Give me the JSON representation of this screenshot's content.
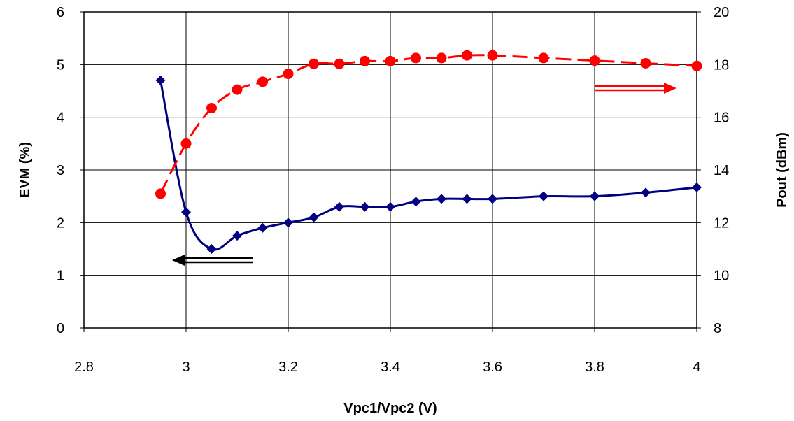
{
  "chart_data": {
    "type": "line",
    "title": "",
    "xlabel": "Vpc1/Vpc2 (V)",
    "ylabel": "EVM (%)",
    "y2label": "Pout (dBm)",
    "xlim": [
      2.8,
      4.0
    ],
    "ylim": [
      0,
      6
    ],
    "y2lim": [
      8,
      20
    ],
    "x_ticks": [
      "2.8",
      "3",
      "3.2",
      "3.4",
      "3.6",
      "3.8",
      "4"
    ],
    "y_ticks": [
      "0",
      "1",
      "2",
      "3",
      "4",
      "5",
      "6"
    ],
    "y2_ticks": [
      "8",
      "10",
      "12",
      "14",
      "16",
      "18",
      "20"
    ],
    "grid": true,
    "series": [
      {
        "axis": "left",
        "color": "#000080",
        "marker": "diamond",
        "line_style": "solid",
        "x": [
          2.95,
          3.0,
          3.05,
          3.1,
          3.15,
          3.2,
          3.25,
          3.3,
          3.35,
          3.4,
          3.45,
          3.5,
          3.55,
          3.6,
          3.7,
          3.8,
          3.9,
          4.0
        ],
        "values": [
          4.7,
          2.2,
          1.5,
          1.75,
          1.9,
          2.0,
          2.1,
          2.3,
          2.3,
          2.3,
          2.4,
          2.45,
          2.45,
          2.45,
          2.5,
          2.5,
          2.57,
          2.67
        ]
      },
      {
        "axis": "right",
        "color": "#ff0000",
        "marker": "circle",
        "line_style": "dashed",
        "x": [
          2.95,
          3.0,
          3.05,
          3.1,
          3.15,
          3.2,
          3.25,
          3.3,
          3.35,
          3.4,
          3.45,
          3.5,
          3.55,
          3.6,
          3.7,
          3.8,
          3.9,
          4.0
        ],
        "values": [
          13.1,
          15.0,
          16.35,
          17.05,
          17.35,
          17.65,
          18.03,
          18.03,
          18.13,
          18.13,
          18.25,
          18.25,
          18.35,
          18.35,
          18.25,
          18.15,
          18.05,
          17.95
        ]
      }
    ],
    "annotations": [
      {
        "name": "evm-axis-arrow",
        "direction": "left",
        "color": "#000000"
      },
      {
        "name": "pout-axis-arrow",
        "direction": "right",
        "color": "#ff0000"
      }
    ]
  }
}
